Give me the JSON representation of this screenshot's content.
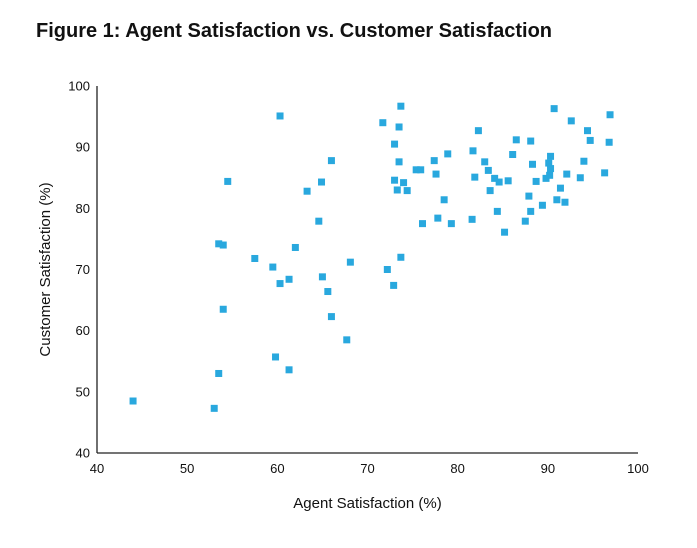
{
  "title": "Figure 1: Agent Satisfaction vs. Customer Satisfaction",
  "chart_data": {
    "type": "scatter",
    "title": "Figure 1: Agent Satisfaction vs. Customer Satisfaction",
    "xlabel": "Agent Satisfaction (%)",
    "ylabel": "Customer Satisfaction (%)",
    "xlim": [
      40,
      100
    ],
    "ylim": [
      40,
      100
    ],
    "xticks": [
      "40",
      "50",
      "60",
      "70",
      "80",
      "90",
      "100"
    ],
    "yticks": [
      "40",
      "50",
      "60",
      "70",
      "80",
      "90",
      "100"
    ],
    "grid": false,
    "marker": "square",
    "color": "#29a8de",
    "points": [
      [
        44,
        48.5
      ],
      [
        53,
        47.3
      ],
      [
        53.5,
        53
      ],
      [
        53.5,
        74.2
      ],
      [
        54,
        74
      ],
      [
        54,
        63.5
      ],
      [
        54.5,
        84.4
      ],
      [
        57.5,
        71.8
      ],
      [
        59.5,
        70.4
      ],
      [
        59.8,
        55.7
      ],
      [
        60.3,
        95.1
      ],
      [
        60.3,
        67.7
      ],
      [
        61.3,
        53.6
      ],
      [
        61.3,
        68.4
      ],
      [
        62,
        73.6
      ],
      [
        63.3,
        82.8
      ],
      [
        64.6,
        77.9
      ],
      [
        64.9,
        84.3
      ],
      [
        65,
        68.8
      ],
      [
        65.6,
        66.4
      ],
      [
        66,
        62.3
      ],
      [
        66,
        87.8
      ],
      [
        67.7,
        58.5
      ],
      [
        68.1,
        71.2
      ],
      [
        71.7,
        94
      ],
      [
        72.2,
        70
      ],
      [
        72.9,
        67.4
      ],
      [
        73,
        84.6
      ],
      [
        73,
        90.5
      ],
      [
        73.3,
        83
      ],
      [
        73.5,
        93.3
      ],
      [
        73.5,
        87.6
      ],
      [
        73.7,
        72
      ],
      [
        73.7,
        96.7
      ],
      [
        74,
        84.2
      ],
      [
        74.4,
        82.9
      ],
      [
        75.4,
        86.3
      ],
      [
        75.9,
        86.3
      ],
      [
        76.1,
        77.5
      ],
      [
        77.4,
        87.8
      ],
      [
        77.6,
        85.6
      ],
      [
        77.8,
        78.4
      ],
      [
        78.5,
        81.4
      ],
      [
        78.9,
        88.9
      ],
      [
        79.3,
        77.5
      ],
      [
        81.6,
        78.2
      ],
      [
        81.7,
        89.4
      ],
      [
        81.9,
        85.1
      ],
      [
        82.3,
        92.7
      ],
      [
        83,
        87.6
      ],
      [
        83.4,
        86.2
      ],
      [
        83.6,
        82.9
      ],
      [
        84.1,
        84.9
      ],
      [
        84.4,
        79.5
      ],
      [
        84.6,
        84.3
      ],
      [
        85.2,
        76.1
      ],
      [
        85.6,
        84.5
      ],
      [
        86.1,
        88.8
      ],
      [
        86.5,
        91.2
      ],
      [
        87.5,
        77.9
      ],
      [
        87.9,
        82
      ],
      [
        88.1,
        79.5
      ],
      [
        88.1,
        91
      ],
      [
        88.3,
        87.2
      ],
      [
        88.7,
        84.4
      ],
      [
        89.4,
        80.5
      ],
      [
        89.8,
        84.9
      ],
      [
        90.1,
        87.4
      ],
      [
        90.2,
        85.4
      ],
      [
        90.3,
        88.5
      ],
      [
        90.3,
        86.5
      ],
      [
        90.7,
        96.3
      ],
      [
        91,
        81.4
      ],
      [
        91.4,
        83.3
      ],
      [
        91.9,
        81
      ],
      [
        92.1,
        85.6
      ],
      [
        92.6,
        94.3
      ],
      [
        93.6,
        85
      ],
      [
        94,
        87.7
      ],
      [
        94.4,
        92.7
      ],
      [
        94.7,
        91.1
      ],
      [
        96.3,
        85.8
      ],
      [
        96.8,
        90.8
      ],
      [
        96.9,
        95.3
      ]
    ]
  }
}
